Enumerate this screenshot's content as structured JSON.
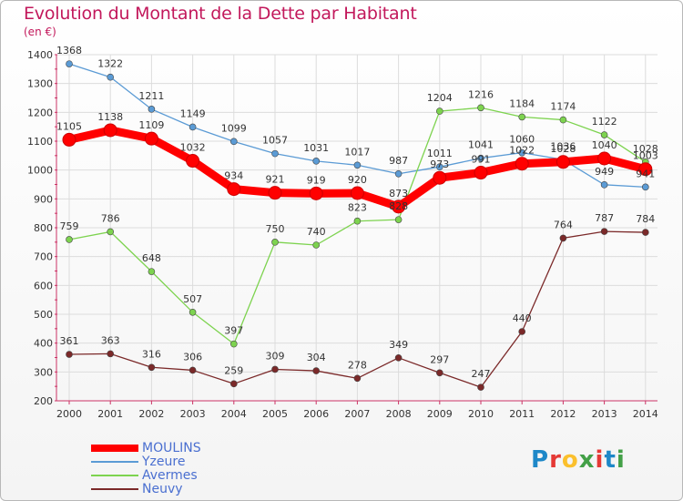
{
  "title": "Evolution du Montant de la Dette par Habitant",
  "subtitle": "(en €)",
  "logo_text": "Proxiti",
  "logo_colors": [
    "#1e88c8",
    "#e53935",
    "#fbc02d",
    "#43a047",
    "#e53935",
    "#1e88c8",
    "#43a047"
  ],
  "chart_data": {
    "type": "line",
    "x": [
      "2000",
      "2001",
      "2002",
      "2003",
      "2004",
      "2005",
      "2006",
      "2007",
      "2008",
      "2009",
      "2010",
      "2011",
      "2012",
      "2013",
      "2014"
    ],
    "ylim": [
      200,
      1400
    ],
    "yticks": [
      "200",
      "300",
      "400",
      "500",
      "600",
      "700",
      "800",
      "900",
      "1000",
      "1100",
      "1200",
      "1300",
      "1400"
    ],
    "grid": true,
    "legend_position": "bottom-left",
    "series": [
      {
        "name": "MOULINS",
        "color": "#ff0000",
        "values": [
          1105,
          1138,
          1109,
          1032,
          934,
          921,
          919,
          920,
          873,
          973,
          991,
          1022,
          1028,
          1040,
          1003
        ],
        "labels": [
          "1105",
          "1138",
          "1109",
          "1032",
          "934",
          "921",
          "919",
          "920",
          "873",
          "973",
          "991",
          "1022",
          "1028",
          "1040",
          "1003"
        ]
      },
      {
        "name": "Yzeure",
        "color": "#5b9bd5",
        "values": [
          1368,
          1322,
          1211,
          1149,
          1099,
          1057,
          1031,
          1017,
          987,
          1011,
          1041,
          1060,
          1036,
          949,
          941
        ],
        "labels": [
          "1368",
          "1322",
          "1211",
          "1149",
          "1099",
          "1057",
          "1031",
          "1017",
          "987",
          "1011",
          "1041",
          "1060",
          "1036",
          "949",
          "941"
        ]
      },
      {
        "name": "Avermes",
        "color": "#7dd34f",
        "values": [
          759,
          786,
          648,
          507,
          397,
          750,
          740,
          823,
          828,
          1204,
          1216,
          1184,
          1174,
          1122,
          1028
        ],
        "labels": [
          "759",
          "786",
          "648",
          "507",
          "397",
          "750",
          "740",
          "823",
          "828",
          "1204",
          "1216",
          "1184",
          "1174",
          "1122",
          "1028"
        ]
      },
      {
        "name": "Neuvy",
        "color": "#7b2929",
        "values": [
          361,
          363,
          316,
          306,
          259,
          309,
          304,
          278,
          349,
          297,
          247,
          440,
          764,
          787,
          784
        ],
        "labels": [
          "361",
          "363",
          "316",
          "306",
          "259",
          "309",
          "304",
          "278",
          "349",
          "297",
          "247",
          "440",
          "764",
          "787",
          "784"
        ]
      }
    ]
  }
}
